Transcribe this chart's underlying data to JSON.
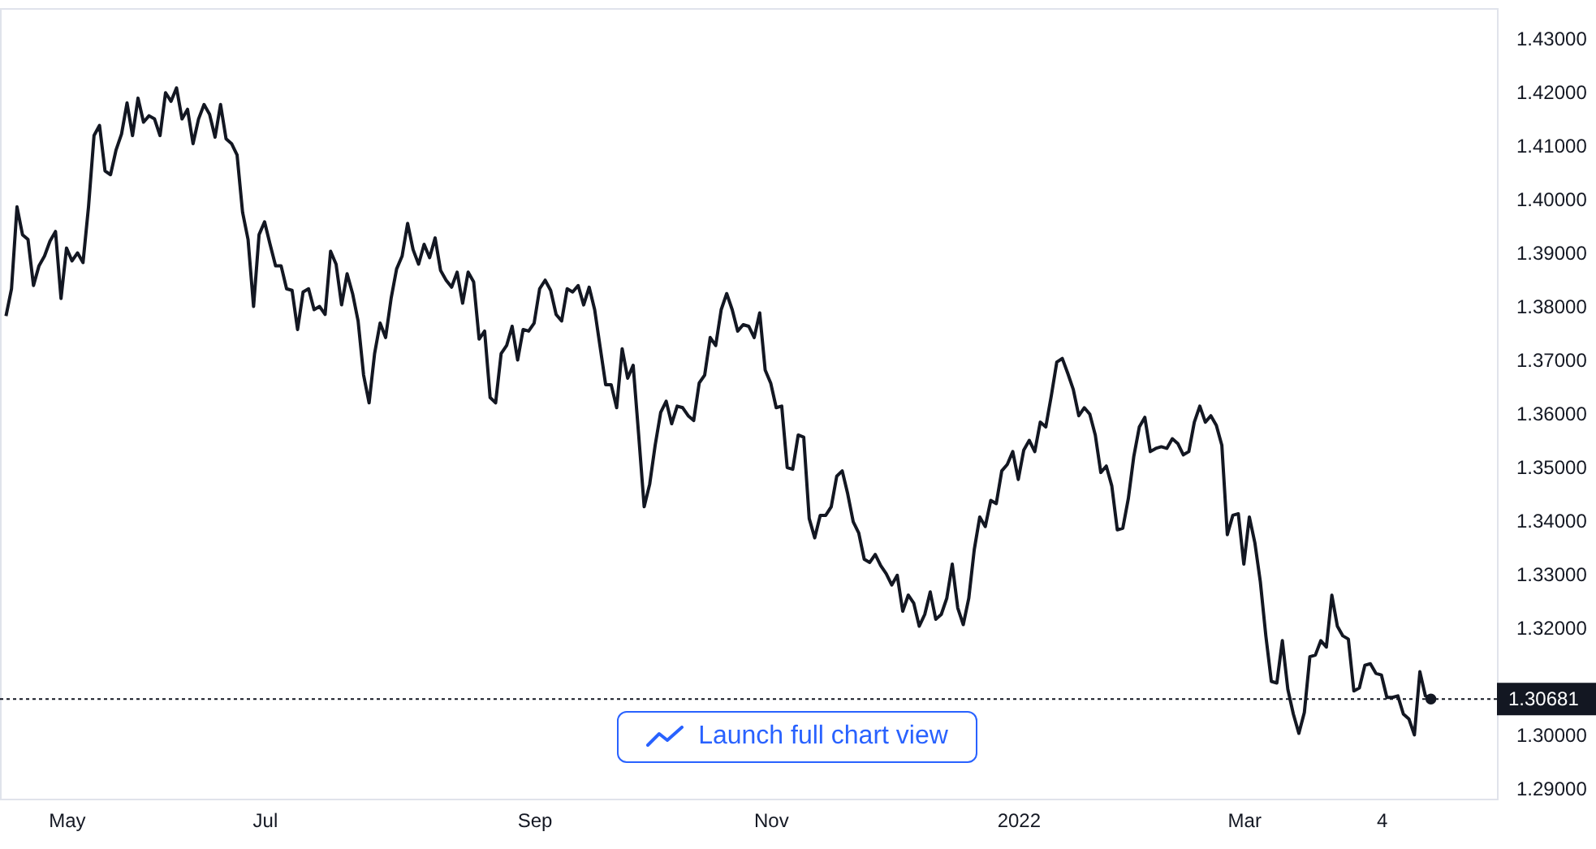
{
  "chart_data": {
    "type": "line",
    "annotations": [
      "Launch full chart view"
    ],
    "categories": [
      null,
      null,
      null,
      null,
      null,
      null,
      null,
      null,
      null,
      null,
      null,
      "May",
      null,
      null,
      null,
      null,
      null,
      null,
      null,
      null,
      null,
      null,
      null,
      null,
      null,
      null,
      null,
      null,
      null,
      null,
      null,
      null,
      null,
      null,
      null,
      null,
      null,
      null,
      null,
      null,
      null,
      null,
      null,
      null,
      null,
      null,
      null,
      "Jul",
      null,
      null,
      null,
      null,
      null,
      null,
      null,
      null,
      null,
      null,
      null,
      null,
      null,
      null,
      null,
      null,
      null,
      null,
      null,
      null,
      null,
      null,
      null,
      null,
      null,
      null,
      null,
      null,
      null,
      null,
      null,
      null,
      null,
      null,
      null,
      null,
      null,
      null,
      null,
      null,
      null,
      null,
      null,
      null,
      null,
      null,
      null,
      null,
      "Sep",
      null,
      null,
      null,
      null,
      null,
      null,
      null,
      null,
      null,
      null,
      null,
      null,
      null,
      null,
      null,
      null,
      null,
      null,
      null,
      null,
      null,
      null,
      null,
      null,
      null,
      null,
      null,
      null,
      null,
      null,
      null,
      null,
      null,
      null,
      null,
      null,
      null,
      null,
      null,
      null,
      null,
      null,
      "Nov",
      null,
      null,
      null,
      null,
      null,
      null,
      null,
      null,
      null,
      null,
      null,
      null,
      null,
      null,
      null,
      null,
      null,
      null,
      null,
      null,
      null,
      null,
      null,
      null,
      null,
      null,
      null,
      null,
      null,
      null,
      null,
      null,
      null,
      null,
      null,
      null,
      null,
      null,
      null,
      null,
      null,
      null,
      null,
      null,
      "2022",
      null,
      null,
      null,
      null,
      null,
      null,
      null,
      null,
      null,
      null,
      null,
      null,
      null,
      null,
      null,
      null,
      null,
      null,
      null,
      null,
      null,
      null,
      null,
      null,
      null,
      null,
      null,
      null,
      null,
      null,
      null,
      null,
      null,
      null,
      null,
      null,
      null,
      null,
      null,
      null,
      "Mar",
      null,
      null,
      null,
      null,
      null,
      null,
      null,
      null,
      null,
      null,
      null,
      null,
      null,
      null,
      null,
      null,
      null,
      null,
      null,
      null,
      null,
      null,
      null,
      null,
      "4",
      null,
      null,
      null,
      null,
      null,
      null,
      null,
      null,
      null
    ],
    "series": [
      {
        "color": "#131722",
        "values": [
          1.3783,
          1.3834,
          1.3987,
          1.3935,
          1.3926,
          1.384,
          1.3877,
          1.3895,
          1.3923,
          1.3941,
          1.3816,
          1.391,
          1.3886,
          1.3901,
          1.3883,
          1.3987,
          1.412,
          1.4139,
          1.4054,
          1.4047,
          1.4093,
          1.4123,
          1.4181,
          1.412,
          1.419,
          1.4145,
          1.4157,
          1.4151,
          1.412,
          1.42,
          1.4184,
          1.4209,
          1.4151,
          1.4169,
          1.4105,
          1.4151,
          1.4178,
          1.416,
          1.4117,
          1.4178,
          1.4114,
          1.4105,
          1.4084,
          1.3977,
          1.3926,
          1.3801,
          1.3935,
          1.3959,
          1.3917,
          1.3877,
          1.3877,
          1.3834,
          1.3831,
          1.3758,
          1.3828,
          1.3834,
          1.3795,
          1.3801,
          1.3786,
          1.3904,
          1.388,
          1.3804,
          1.3862,
          1.3825,
          1.3774,
          1.3673,
          1.3621,
          1.3713,
          1.377,
          1.3743,
          1.3816,
          1.3871,
          1.3895,
          1.3956,
          1.3907,
          1.388,
          1.3917,
          1.3892,
          1.3929,
          1.3868,
          1.385,
          1.3837,
          1.3865,
          1.3807,
          1.3865,
          1.3847,
          1.374,
          1.3755,
          1.3631,
          1.3621,
          1.3713,
          1.3728,
          1.3764,
          1.3701,
          1.3758,
          1.3755,
          1.377,
          1.3834,
          1.385,
          1.3831,
          1.3786,
          1.3774,
          1.3834,
          1.3828,
          1.384,
          1.3804,
          1.3837,
          1.3795,
          1.3725,
          1.3655,
          1.3655,
          1.3612,
          1.3722,
          1.3667,
          1.3691,
          1.3561,
          1.3427,
          1.3469,
          1.3542,
          1.3603,
          1.3624,
          1.3582,
          1.3615,
          1.3612,
          1.3597,
          1.3588,
          1.3658,
          1.3673,
          1.3743,
          1.3728,
          1.3795,
          1.3825,
          1.3795,
          1.3755,
          1.3767,
          1.3764,
          1.3743,
          1.3789,
          1.3682,
          1.3658,
          1.3612,
          1.3615,
          1.35,
          1.3497,
          1.3561,
          1.3557,
          1.3405,
          1.3369,
          1.3411,
          1.3411,
          1.3427,
          1.3484,
          1.3494,
          1.3451,
          1.3399,
          1.3378,
          1.3329,
          1.3323,
          1.3338,
          1.3317,
          1.3302,
          1.3281,
          1.3299,
          1.3232,
          1.3262,
          1.3247,
          1.3204,
          1.3226,
          1.3268,
          1.3217,
          1.3226,
          1.3256,
          1.332,
          1.3238,
          1.3207,
          1.3256,
          1.3347,
          1.3408,
          1.339,
          1.3439,
          1.3433,
          1.3494,
          1.3506,
          1.353,
          1.3478,
          1.3533,
          1.3551,
          1.353,
          1.3585,
          1.3576,
          1.3634,
          1.3697,
          1.3704,
          1.3676,
          1.3646,
          1.3597,
          1.3612,
          1.36,
          1.3561,
          1.3491,
          1.3503,
          1.3466,
          1.3384,
          1.3387,
          1.3442,
          1.3521,
          1.3576,
          1.3594,
          1.353,
          1.3536,
          1.3539,
          1.3536,
          1.3554,
          1.3545,
          1.3524,
          1.353,
          1.3585,
          1.3615,
          1.3585,
          1.3597,
          1.3579,
          1.3542,
          1.3375,
          1.3411,
          1.3414,
          1.332,
          1.3408,
          1.336,
          1.3287,
          1.3186,
          1.3101,
          1.3098,
          1.3177,
          1.3086,
          1.304,
          1.3004,
          1.3043,
          1.3147,
          1.315,
          1.3177,
          1.3165,
          1.3262,
          1.3204,
          1.3186,
          1.318,
          1.3083,
          1.3089,
          1.3131,
          1.3134,
          1.3116,
          1.3113,
          1.3071,
          1.3071,
          1.3074,
          1.304,
          1.3031,
          1.3001,
          1.3119,
          1.3074,
          1.3068
        ]
      }
    ],
    "ylim": [
      1.2882,
      1.4358
    ],
    "yticks": [
      {
        "value": 1.29,
        "label": "1.29000"
      },
      {
        "value": 1.3,
        "label": "1.30000"
      },
      {
        "value": 1.32,
        "label": "1.32000"
      },
      {
        "value": 1.33,
        "label": "1.33000"
      },
      {
        "value": 1.34,
        "label": "1.34000"
      },
      {
        "value": 1.35,
        "label": "1.35000"
      },
      {
        "value": 1.36,
        "label": "1.36000"
      },
      {
        "value": 1.37,
        "label": "1.37000"
      },
      {
        "value": 1.38,
        "label": "1.38000"
      },
      {
        "value": 1.39,
        "label": "1.39000"
      },
      {
        "value": 1.4,
        "label": "1.40000"
      },
      {
        "value": 1.41,
        "label": "1.41000"
      },
      {
        "value": 1.42,
        "label": "1.42000"
      },
      {
        "value": 1.43,
        "label": "1.43000"
      }
    ],
    "ref_lines": [
      {
        "axis": "y",
        "value": 1.30681,
        "label": "1.30681",
        "color": "#131722",
        "line_style": "dotted"
      }
    ],
    "grid": false,
    "line_style": "solid"
  }
}
